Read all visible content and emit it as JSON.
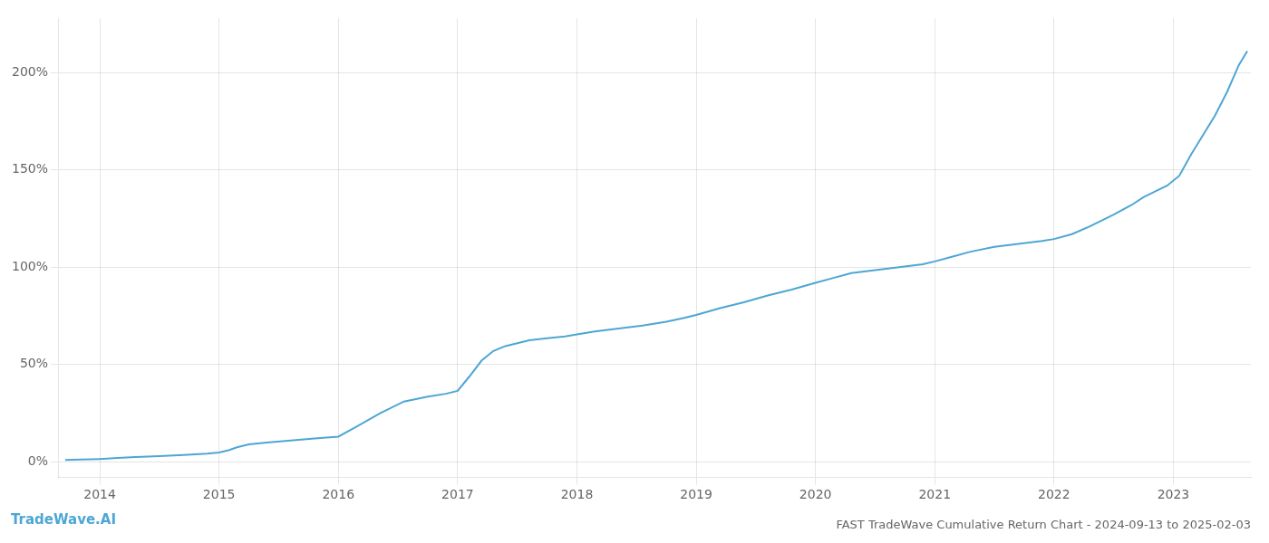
{
  "chart_data": {
    "type": "line",
    "title": "FAST TradeWave Cumulative Return Chart - 2024-09-13 to 2025-02-03",
    "annotations": [
      "TradeWave.AI"
    ],
    "color": "#4da6d4",
    "grid": true,
    "xlim": [
      2013.65,
      2023.65
    ],
    "xticks": [
      2014,
      2015,
      2016,
      2017,
      2018,
      2019,
      2020,
      2021,
      2022,
      2023
    ],
    "ylim": [
      -8,
      228
    ],
    "yticks": [
      {
        "value": 0,
        "label": "0%"
      },
      {
        "value": 50,
        "label": "50%"
      },
      {
        "value": 100,
        "label": "100%"
      },
      {
        "value": 150,
        "label": "150%"
      },
      {
        "value": 200,
        "label": "200%"
      }
    ],
    "x": [
      2013.71,
      2013.85,
      2014.0,
      2014.15,
      2014.3,
      2014.5,
      2014.7,
      2014.9,
      2015.0,
      2015.08,
      2015.15,
      2015.25,
      2015.4,
      2015.6,
      2015.8,
      2016.0,
      2016.15,
      2016.35,
      2016.55,
      2016.75,
      2016.9,
      2017.0,
      2017.1,
      2017.2,
      2017.3,
      2017.4,
      2017.5,
      2017.6,
      2017.75,
      2017.9,
      2018.0,
      2018.15,
      2018.35,
      2018.55,
      2018.75,
      2018.9,
      2019.0,
      2019.2,
      2019.4,
      2019.6,
      2019.8,
      2020.0,
      2020.15,
      2020.3,
      2020.5,
      2020.7,
      2020.9,
      2021.0,
      2021.15,
      2021.3,
      2021.5,
      2021.7,
      2021.9,
      2022.0,
      2022.15,
      2022.3,
      2022.5,
      2022.65,
      2022.75,
      2022.85,
      2022.95,
      2023.05,
      2023.15,
      2023.25,
      2023.35,
      2023.45,
      2023.55,
      2023.62
    ],
    "values": [
      1.0,
      1.2,
      1.5,
      2.0,
      2.5,
      3.0,
      3.5,
      4.2,
      4.8,
      6.0,
      7.5,
      9.0,
      10.0,
      11.0,
      12.0,
      13.0,
      18.0,
      25.0,
      31.0,
      33.5,
      35.0,
      36.5,
      44.0,
      52.0,
      57.0,
      59.5,
      61.0,
      62.5,
      63.5,
      64.5,
      65.5,
      67.0,
      68.5,
      70.0,
      72.0,
      74.0,
      75.5,
      79.0,
      82.0,
      85.5,
      88.5,
      92.0,
      94.5,
      97.0,
      98.5,
      100.0,
      101.5,
      103.0,
      105.5,
      108.0,
      110.5,
      112.0,
      113.5,
      114.5,
      117.0,
      121.0,
      127.0,
      132.0,
      136.0,
      139.0,
      142.0,
      147.0,
      158.0,
      168.0,
      178.0,
      190.0,
      204.0,
      211.0
    ]
  }
}
